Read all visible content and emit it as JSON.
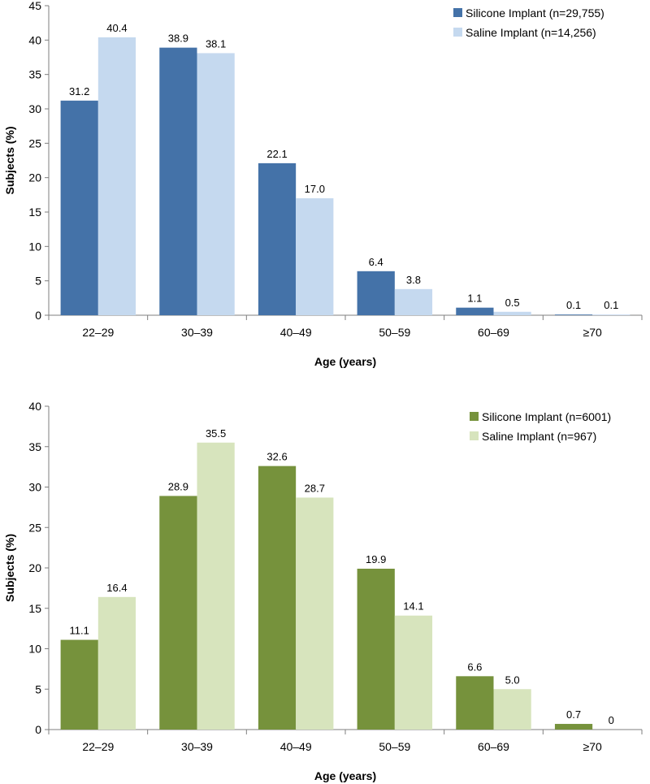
{
  "chart_data": [
    {
      "type": "bar",
      "categories": [
        "22–29",
        "30–39",
        "40–49",
        "50–59",
        "60–69",
        "≥70"
      ],
      "series": [
        {
          "name": "Silicone Implant (n=29,755)",
          "values": [
            31.2,
            38.9,
            22.1,
            6.4,
            1.1,
            0.1
          ],
          "labels": [
            "31.2",
            "38.9",
            "22.1",
            "6.4",
            "1.1",
            "0.1"
          ],
          "color": "#4472a8"
        },
        {
          "name": "Saline Implant (n=14,256)",
          "values": [
            40.4,
            38.1,
            17.0,
            3.8,
            0.5,
            0.1
          ],
          "labels": [
            "40.4",
            "38.1",
            "17.0",
            "3.8",
            "0.5",
            "0.1"
          ],
          "color": "#c5d9ef"
        }
      ],
      "xlabel": "Age (years)",
      "ylabel": "Subjects (%)",
      "ylim": [
        0,
        45
      ],
      "yticks": [
        0,
        5,
        10,
        15,
        20,
        25,
        30,
        35,
        40,
        45
      ],
      "legend_position": "top-right"
    },
    {
      "type": "bar",
      "categories": [
        "22–29",
        "30–39",
        "40–49",
        "50–59",
        "60–69",
        "≥70"
      ],
      "series": [
        {
          "name": "Silicone Implant (n=6001)",
          "values": [
            11.1,
            28.9,
            32.6,
            19.9,
            6.6,
            0.7
          ],
          "labels": [
            "11.1",
            "28.9",
            "32.6",
            "19.9",
            "6.6",
            "0.7"
          ],
          "color": "#76923c"
        },
        {
          "name": "Saline Implant (n=967)",
          "values": [
            16.4,
            35.5,
            28.7,
            14.1,
            5.0,
            0
          ],
          "labels": [
            "16.4",
            "35.5",
            "28.7",
            "14.1",
            "5.0",
            "0"
          ],
          "color": "#d7e4bd"
        }
      ],
      "xlabel": "Age (years)",
      "ylabel": "Subjects (%)",
      "ylim": [
        0,
        40
      ],
      "yticks": [
        0,
        5,
        10,
        15,
        20,
        25,
        30,
        35,
        40
      ],
      "legend_position": "top-right"
    }
  ]
}
